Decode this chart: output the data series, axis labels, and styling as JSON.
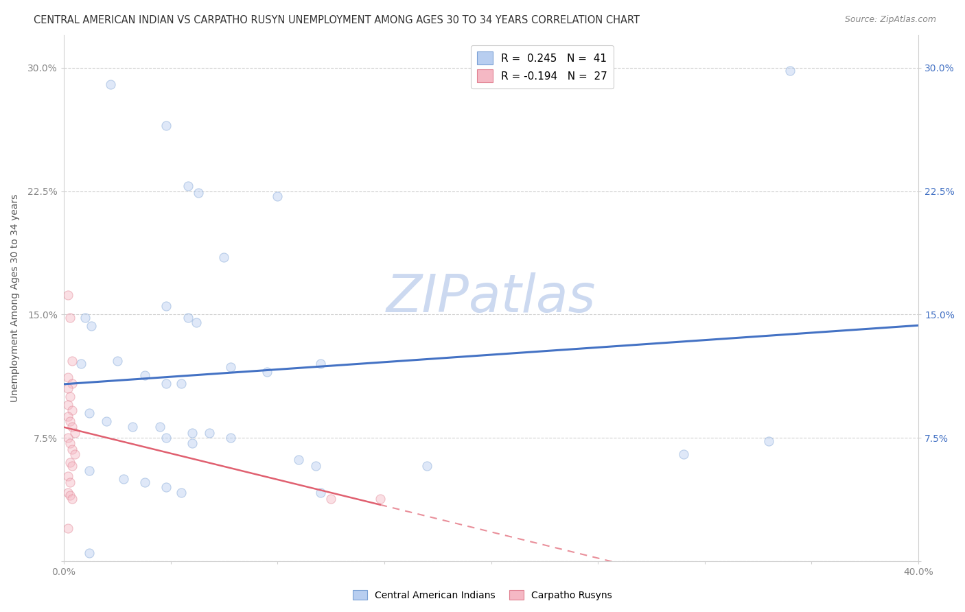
{
  "title": "CENTRAL AMERICAN INDIAN VS CARPATHO RUSYN UNEMPLOYMENT AMONG AGES 30 TO 34 YEARS CORRELATION CHART",
  "source": "Source: ZipAtlas.com",
  "ylabel": "Unemployment Among Ages 30 to 34 years",
  "xlim": [
    0.0,
    0.4
  ],
  "ylim": [
    0.0,
    0.32
  ],
  "xticks": [
    0.0,
    0.05,
    0.1,
    0.15,
    0.2,
    0.25,
    0.3,
    0.35,
    0.4
  ],
  "xticklabels": [
    "0.0%",
    "",
    "",
    "",
    "",
    "",
    "",
    "",
    "40.0%"
  ],
  "yticks": [
    0.0,
    0.075,
    0.15,
    0.225,
    0.3
  ],
  "ylabels_left": [
    "",
    "7.5%",
    "15.0%",
    "22.5%",
    "30.0%"
  ],
  "ylabels_right": [
    "",
    "7.5%",
    "15.0%",
    "22.5%",
    "30.0%"
  ],
  "watermark": "ZIPatlas",
  "blue_points": [
    [
      0.022,
      0.29
    ],
    [
      0.048,
      0.265
    ],
    [
      0.058,
      0.228
    ],
    [
      0.063,
      0.224
    ],
    [
      0.1,
      0.222
    ],
    [
      0.075,
      0.185
    ],
    [
      0.34,
      0.298
    ],
    [
      0.048,
      0.155
    ],
    [
      0.058,
      0.148
    ],
    [
      0.062,
      0.145
    ],
    [
      0.01,
      0.148
    ],
    [
      0.013,
      0.143
    ],
    [
      0.025,
      0.122
    ],
    [
      0.008,
      0.12
    ],
    [
      0.078,
      0.118
    ],
    [
      0.095,
      0.115
    ],
    [
      0.12,
      0.12
    ],
    [
      0.038,
      0.113
    ],
    [
      0.048,
      0.108
    ],
    [
      0.055,
      0.108
    ],
    [
      0.012,
      0.09
    ],
    [
      0.02,
      0.085
    ],
    [
      0.032,
      0.082
    ],
    [
      0.045,
      0.082
    ],
    [
      0.06,
      0.078
    ],
    [
      0.068,
      0.078
    ],
    [
      0.078,
      0.075
    ],
    [
      0.048,
      0.075
    ],
    [
      0.06,
      0.072
    ],
    [
      0.11,
      0.062
    ],
    [
      0.118,
      0.058
    ],
    [
      0.17,
      0.058
    ],
    [
      0.012,
      0.055
    ],
    [
      0.028,
      0.05
    ],
    [
      0.038,
      0.048
    ],
    [
      0.048,
      0.045
    ],
    [
      0.055,
      0.042
    ],
    [
      0.12,
      0.042
    ],
    [
      0.29,
      0.065
    ],
    [
      0.33,
      0.073
    ],
    [
      0.012,
      0.005
    ]
  ],
  "pink_points": [
    [
      0.002,
      0.162
    ],
    [
      0.003,
      0.148
    ],
    [
      0.004,
      0.122
    ],
    [
      0.002,
      0.112
    ],
    [
      0.004,
      0.108
    ],
    [
      0.002,
      0.105
    ],
    [
      0.003,
      0.1
    ],
    [
      0.002,
      0.095
    ],
    [
      0.004,
      0.092
    ],
    [
      0.002,
      0.088
    ],
    [
      0.003,
      0.085
    ],
    [
      0.004,
      0.082
    ],
    [
      0.005,
      0.078
    ],
    [
      0.002,
      0.075
    ],
    [
      0.003,
      0.072
    ],
    [
      0.004,
      0.068
    ],
    [
      0.005,
      0.065
    ],
    [
      0.003,
      0.06
    ],
    [
      0.004,
      0.058
    ],
    [
      0.002,
      0.052
    ],
    [
      0.003,
      0.048
    ],
    [
      0.002,
      0.042
    ],
    [
      0.003,
      0.04
    ],
    [
      0.004,
      0.038
    ],
    [
      0.125,
      0.038
    ],
    [
      0.148,
      0.038
    ],
    [
      0.002,
      0.02
    ]
  ],
  "blue_line_color": "#4472c4",
  "pink_line_color": "#e06070",
  "background_color": "#ffffff",
  "grid_color": "#d0d0d0",
  "title_fontsize": 10.5,
  "axis_label_fontsize": 10,
  "tick_fontsize": 10,
  "watermark_color": "#ccd9f0",
  "watermark_fontsize": 55,
  "legend_fontsize": 11,
  "dot_size": 90,
  "dot_alpha": 0.45,
  "left_tick_color": "#888888",
  "right_tick_color": "#4472c4"
}
